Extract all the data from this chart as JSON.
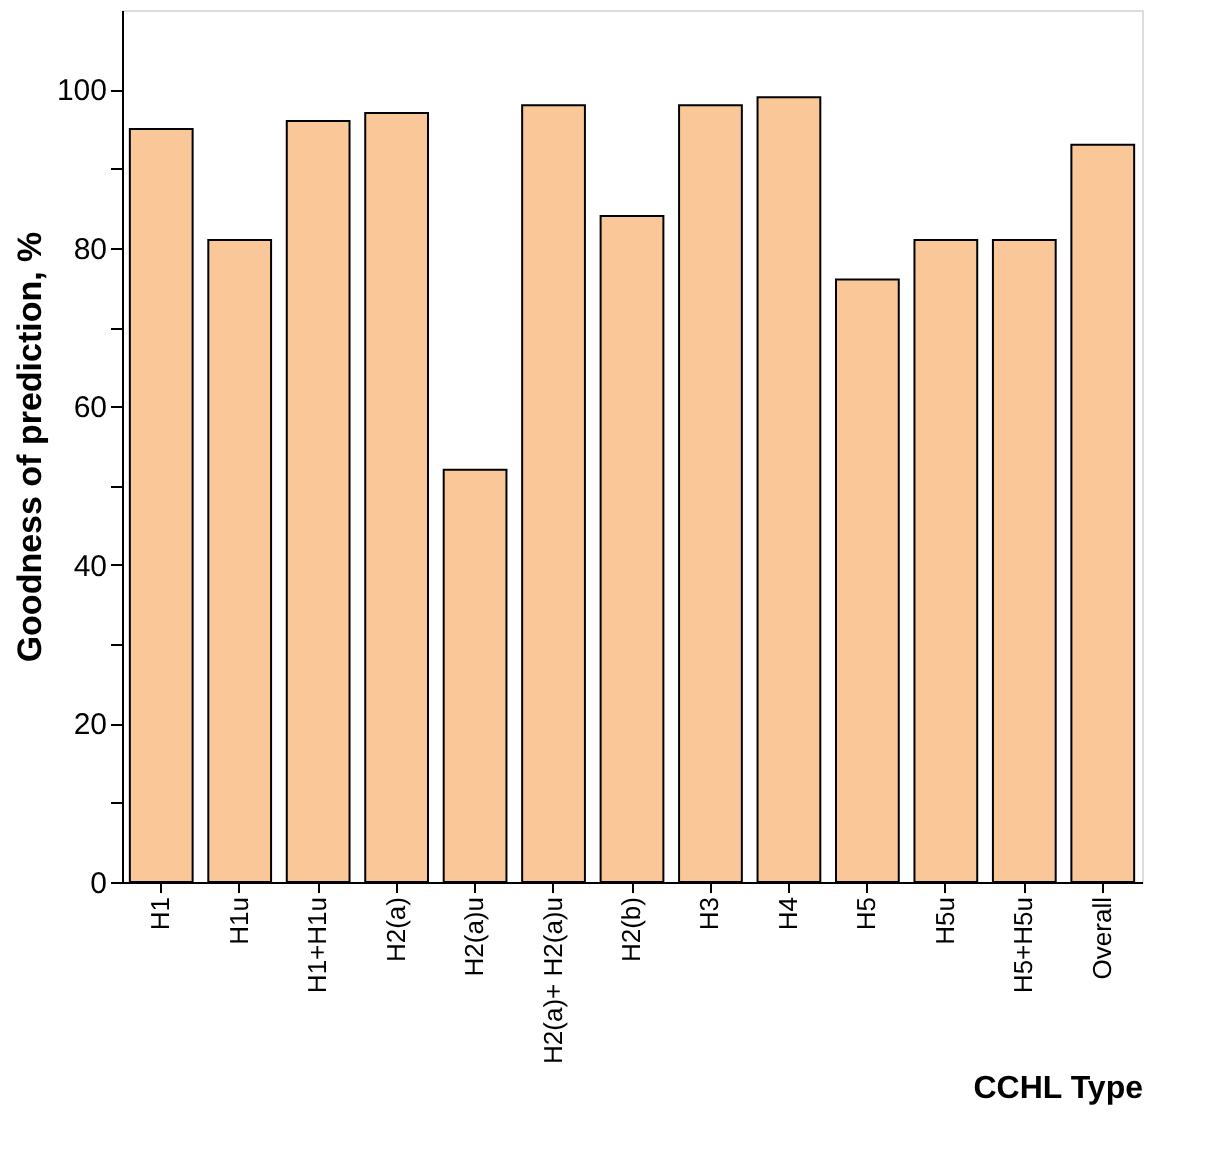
{
  "chart_data": {
    "type": "bar",
    "xlabel": "CCHL Type",
    "ylabel": "Goodness of prediction, %",
    "categories": [
      "H1",
      "H1u",
      "H1+H1u",
      "H2(a)",
      "H2(a)u",
      "H2(a)+ H2(a)u",
      "H2(b)",
      "H3",
      "H4",
      "H5",
      "H5u",
      "H5+H5u",
      "Overall"
    ],
    "values": [
      95,
      81,
      96,
      97,
      52,
      98,
      84,
      98,
      99,
      76,
      81,
      81,
      93
    ],
    "color": "#fac898",
    "ylim": [
      0,
      110
    ],
    "yticks": [
      0,
      {
        "value": 10,
        "label": null
      },
      20,
      {
        "value": 30,
        "label": null
      },
      40,
      {
        "value": 50,
        "label": null
      },
      60,
      {
        "value": 70,
        "label": null
      },
      80,
      {
        "value": 90,
        "label": null
      },
      100
    ],
    "grid": false
  }
}
